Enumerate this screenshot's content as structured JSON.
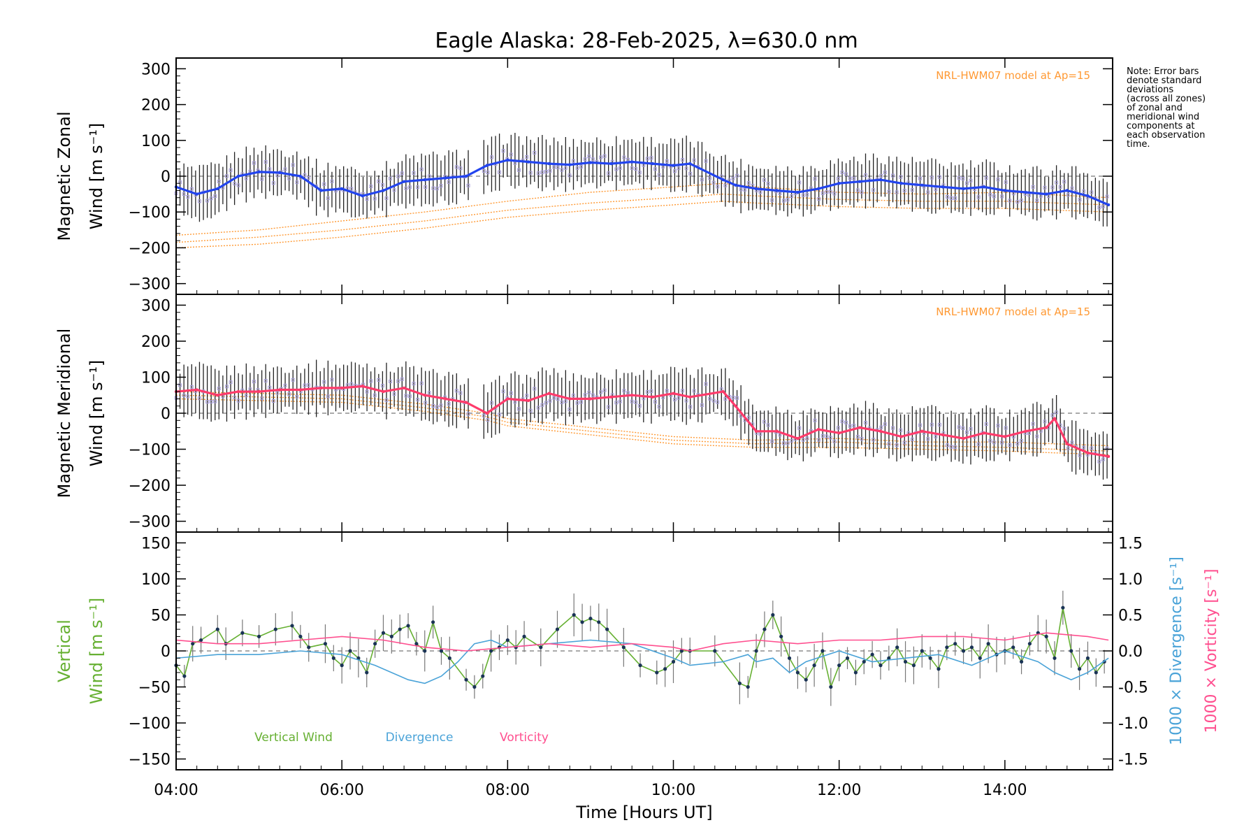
{
  "title": "Eagle Alaska: 28-Feb-2025, λ=630.0 nm",
  "note": "Note: Error bars\ndenote standard\ndeviations\n(across all zones)\nof zonal and\nmeridional wind\ncomponents at\neach observation\ntime.",
  "colors": {
    "zonal": "#2244ee",
    "meridional": "#ff3b6b",
    "vertical": "#66b032",
    "divergence": "#4aa3d8",
    "vorticity": "#ff4f8f",
    "model": "#ff9933",
    "scatter": "#a9a0dd",
    "errorbar": "#222222"
  },
  "chart_data": [
    {
      "type": "line",
      "panel": "zonal",
      "ylabel_line1": "Magnetic Zonal",
      "ylabel_line2": "Wind [m s⁻¹]",
      "ylim": [
        -330,
        330
      ],
      "yticks": [
        -300,
        -200,
        -100,
        0,
        100,
        200,
        300
      ],
      "model_label": "NRL-HWM07 model at Ap=15",
      "series": [
        {
          "name": "Magnetic Zonal Wind",
          "x": [
            4.0,
            4.25,
            4.5,
            4.75,
            5.0,
            5.25,
            5.5,
            5.75,
            6.0,
            6.25,
            6.5,
            6.75,
            7.0,
            7.25,
            7.5,
            7.75,
            8.0,
            8.25,
            8.5,
            8.75,
            9.0,
            9.25,
            9.5,
            9.75,
            10.0,
            10.2,
            10.6,
            10.75,
            11.0,
            11.25,
            11.5,
            11.75,
            12.0,
            12.25,
            12.5,
            12.75,
            13.0,
            13.25,
            13.5,
            13.75,
            14.0,
            14.25,
            14.5,
            14.75,
            15.0,
            15.25
          ],
          "values": [
            -30,
            -50,
            -35,
            0,
            12,
            10,
            0,
            -40,
            -35,
            -55,
            -40,
            -15,
            -10,
            -5,
            0,
            30,
            45,
            40,
            35,
            32,
            38,
            35,
            40,
            35,
            30,
            35,
            -10,
            -25,
            -35,
            -40,
            -45,
            -35,
            -20,
            -15,
            -10,
            -20,
            -25,
            -30,
            -35,
            -30,
            -40,
            -45,
            -50,
            -40,
            -55,
            -80
          ]
        }
      ],
      "model_curves": [
        {
          "name": "HWM07 a",
          "x": [
            4.0,
            5.0,
            6.0,
            7.0,
            8.0,
            9.0,
            10.0,
            10.6,
            11.0,
            12.0,
            13.0,
            14.0,
            15.25
          ],
          "values": [
            -165,
            -150,
            -125,
            -100,
            -70,
            -45,
            -30,
            -20,
            -30,
            -45,
            -50,
            -45,
            -60
          ]
        },
        {
          "name": "HWM07 b",
          "x": [
            4.0,
            5.0,
            6.0,
            7.0,
            8.0,
            9.0,
            10.0,
            10.6,
            11.0,
            12.0,
            13.0,
            14.0,
            15.25
          ],
          "values": [
            -185,
            -170,
            -150,
            -125,
            -95,
            -75,
            -60,
            -50,
            -55,
            -65,
            -70,
            -70,
            -80
          ]
        },
        {
          "name": "HWM07 c",
          "x": [
            4.0,
            5.0,
            6.0,
            7.0,
            8.0,
            9.0,
            10.0,
            10.6,
            11.0,
            12.0,
            13.0,
            14.0,
            15.25
          ],
          "values": [
            -200,
            -190,
            -170,
            -145,
            -115,
            -95,
            -80,
            -70,
            -75,
            -85,
            -90,
            -90,
            -100
          ]
        }
      ]
    },
    {
      "type": "line",
      "panel": "meridional",
      "ylabel_line1": "Magnetic Meridional",
      "ylabel_line2": "Wind [m s⁻¹]",
      "ylim": [
        -330,
        330
      ],
      "yticks": [
        -300,
        -200,
        -100,
        0,
        100,
        200,
        300
      ],
      "model_label": "NRL-HWM07 model at Ap=15",
      "series": [
        {
          "name": "Magnetic Meridional Wind",
          "x": [
            4.0,
            4.25,
            4.5,
            4.75,
            5.0,
            5.25,
            5.5,
            5.75,
            6.0,
            6.25,
            6.5,
            6.75,
            7.0,
            7.25,
            7.5,
            7.75,
            8.0,
            8.25,
            8.5,
            8.75,
            9.0,
            9.25,
            9.5,
            9.75,
            10.0,
            10.2,
            10.6,
            10.75,
            11.0,
            11.25,
            11.5,
            11.75,
            12.0,
            12.25,
            12.5,
            12.75,
            13.0,
            13.25,
            13.5,
            13.75,
            14.0,
            14.25,
            14.5,
            14.6,
            14.75,
            15.0,
            15.25
          ],
          "values": [
            60,
            65,
            50,
            60,
            60,
            65,
            65,
            70,
            70,
            75,
            60,
            70,
            50,
            40,
            30,
            0,
            40,
            35,
            55,
            40,
            40,
            45,
            50,
            45,
            55,
            45,
            60,
            20,
            -50,
            -50,
            -70,
            -45,
            -55,
            -40,
            -50,
            -65,
            -50,
            -60,
            -70,
            -55,
            -65,
            -50,
            -40,
            -15,
            -85,
            -110,
            -120
          ]
        }
      ],
      "model_curves": [
        {
          "name": "HWM07 a",
          "x": [
            4.0,
            5.0,
            6.0,
            7.0,
            7.75,
            8.0,
            9.0,
            10.0,
            11.0,
            12.0,
            13.0,
            14.0,
            14.6,
            15.25
          ],
          "values": [
            60,
            55,
            50,
            25,
            0,
            -15,
            -40,
            -65,
            -75,
            -70,
            -80,
            -80,
            -85,
            -90
          ]
        },
        {
          "name": "HWM07 b",
          "x": [
            4.0,
            5.0,
            6.0,
            7.0,
            7.75,
            8.0,
            9.0,
            10.0,
            11.0,
            12.0,
            13.0,
            14.0,
            14.6,
            15.25
          ],
          "values": [
            50,
            45,
            40,
            15,
            -10,
            -25,
            -50,
            -75,
            -85,
            -80,
            -90,
            -95,
            -100,
            -105
          ]
        },
        {
          "name": "HWM07 c",
          "x": [
            4.0,
            5.0,
            6.0,
            7.0,
            7.75,
            8.0,
            9.0,
            10.0,
            11.0,
            12.0,
            13.0,
            14.0,
            14.6,
            15.25
          ],
          "values": [
            40,
            35,
            30,
            5,
            -20,
            -35,
            -60,
            -85,
            -95,
            -95,
            -100,
            -105,
            -110,
            -115
          ]
        }
      ]
    },
    {
      "type": "line",
      "panel": "vertical",
      "ylabel_line1": "Vertical",
      "ylabel_line2": "Wind [m s⁻¹]",
      "y2label_line1": "1000 × Divergence [s⁻¹]",
      "y2label_line2": "1000 × Vorticity [s⁻¹]",
      "ylim": [
        -165,
        165
      ],
      "yticks": [
        -150,
        -100,
        -50,
        0,
        50,
        100,
        150
      ],
      "y2lim": [
        -1.65,
        1.65
      ],
      "y2ticks": [
        -1.5,
        -1.0,
        -0.5,
        0.0,
        0.5,
        1.0,
        1.5
      ],
      "legend": [
        "Vertical Wind",
        "Divergence",
        "Vorticity"
      ],
      "series": [
        {
          "name": "Vertical Wind",
          "axis": "left",
          "x": [
            4.0,
            4.1,
            4.2,
            4.3,
            4.5,
            4.6,
            4.8,
            5.0,
            5.2,
            5.4,
            5.5,
            5.6,
            5.8,
            5.9,
            6.0,
            6.1,
            6.2,
            6.3,
            6.4,
            6.5,
            6.6,
            6.7,
            6.8,
            6.9,
            7.0,
            7.1,
            7.2,
            7.3,
            7.5,
            7.6,
            7.7,
            7.8,
            7.9,
            8.0,
            8.1,
            8.2,
            8.4,
            8.6,
            8.8,
            8.9,
            9.0,
            9.1,
            9.2,
            9.4,
            9.6,
            9.8,
            9.9,
            10.0,
            10.1,
            10.2,
            10.5,
            10.8,
            10.9,
            11.0,
            11.1,
            11.2,
            11.3,
            11.4,
            11.5,
            11.6,
            11.7,
            11.8,
            11.9,
            12.0,
            12.1,
            12.2,
            12.3,
            12.4,
            12.5,
            12.6,
            12.7,
            12.8,
            12.9,
            13.0,
            13.1,
            13.2,
            13.3,
            13.4,
            13.5,
            13.6,
            13.7,
            13.8,
            13.9,
            14.0,
            14.1,
            14.2,
            14.3,
            14.4,
            14.5,
            14.6,
            14.7,
            14.8,
            14.9,
            15.0,
            15.1,
            15.2
          ],
          "values": [
            -20,
            -35,
            10,
            15,
            30,
            10,
            25,
            20,
            30,
            35,
            20,
            5,
            10,
            -10,
            -20,
            0,
            -10,
            -30,
            10,
            25,
            20,
            30,
            35,
            10,
            0,
            40,
            0,
            -10,
            -40,
            -50,
            -35,
            0,
            5,
            15,
            5,
            20,
            5,
            30,
            50,
            40,
            45,
            40,
            30,
            5,
            -20,
            -30,
            -25,
            -15,
            0,
            0,
            0,
            -45,
            -50,
            0,
            30,
            50,
            20,
            -10,
            -30,
            -40,
            -20,
            0,
            -50,
            -20,
            -10,
            -30,
            -15,
            -5,
            -20,
            -10,
            5,
            -15,
            -20,
            0,
            -10,
            -25,
            5,
            10,
            0,
            5,
            -10,
            10,
            -5,
            0,
            5,
            -15,
            10,
            25,
            20,
            -10,
            60,
            0,
            -25,
            -10,
            -30,
            -15
          ]
        },
        {
          "name": "Divergence",
          "axis": "right",
          "x": [
            4.0,
            4.5,
            5.0,
            5.5,
            6.0,
            6.4,
            6.8,
            7.0,
            7.2,
            7.4,
            7.6,
            7.8,
            8.0,
            8.5,
            9.0,
            9.5,
            10.0,
            10.2,
            10.6,
            10.9,
            11.0,
            11.2,
            11.4,
            11.6,
            12.0,
            12.4,
            12.8,
            13.2,
            13.6,
            14.0,
            14.4,
            14.6,
            14.8,
            15.0,
            15.25
          ],
          "values": [
            -0.1,
            -0.05,
            -0.05,
            0.0,
            -0.05,
            -0.2,
            -0.4,
            -0.45,
            -0.35,
            -0.15,
            0.1,
            0.15,
            0.05,
            0.1,
            0.15,
            0.1,
            -0.1,
            -0.2,
            -0.15,
            -0.05,
            -0.15,
            -0.1,
            -0.3,
            -0.15,
            0.0,
            -0.15,
            -0.1,
            -0.05,
            -0.2,
            0.0,
            -0.15,
            -0.3,
            -0.4,
            -0.3,
            -0.1
          ]
        },
        {
          "name": "Vorticity",
          "axis": "right",
          "x": [
            4.0,
            4.5,
            5.0,
            5.5,
            6.0,
            6.5,
            7.0,
            7.5,
            8.0,
            8.5,
            9.0,
            9.5,
            10.0,
            10.2,
            10.6,
            11.0,
            11.5,
            12.0,
            12.5,
            13.0,
            13.5,
            14.0,
            14.5,
            15.0,
            15.25
          ],
          "values": [
            0.15,
            0.1,
            0.1,
            0.15,
            0.2,
            0.15,
            0.05,
            0.0,
            0.05,
            0.1,
            0.05,
            0.1,
            0.05,
            0.0,
            0.1,
            0.15,
            0.1,
            0.15,
            0.15,
            0.2,
            0.2,
            0.15,
            0.25,
            0.2,
            0.15
          ]
        }
      ]
    }
  ],
  "xaxis": {
    "label": "Time [Hours UT]",
    "xlim": [
      4.0,
      15.3
    ],
    "ticks": [
      4,
      6,
      8,
      10,
      12,
      14
    ],
    "tick_labels": [
      "04:00",
      "06:00",
      "08:00",
      "10:00",
      "12:00",
      "14:00"
    ]
  }
}
